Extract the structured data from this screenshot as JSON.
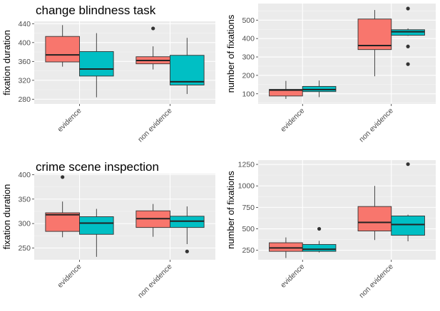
{
  "chart_data": [
    {
      "type": "boxplot",
      "title": "change blindness task",
      "xlabel": "",
      "ylabel": "fixation duration",
      "categories": [
        "evidence",
        "non evidence"
      ],
      "ylim": [
        270,
        445
      ],
      "yticks": [
        280,
        320,
        360,
        400,
        440
      ],
      "grid": true,
      "legend": "none",
      "series_colors": [
        "#F8766D",
        "#00BFC4"
      ],
      "boxes": [
        [
          {
            "min": 349,
            "q1": 359,
            "median": 374,
            "q3": 413,
            "max": 437,
            "outliers": []
          },
          {
            "min": 284,
            "q1": 329,
            "median": 344,
            "q3": 381,
            "max": 420,
            "outliers": []
          }
        ],
        [
          {
            "min": 343,
            "q1": 355,
            "median": 362,
            "q3": 370,
            "max": 392,
            "outliers": [
              430
            ]
          },
          {
            "min": 291,
            "q1": 310,
            "median": 317,
            "q3": 373,
            "max": 410,
            "outliers": []
          }
        ]
      ]
    },
    {
      "type": "boxplot",
      "title": "",
      "xlabel": "",
      "ylabel": "number of fixations",
      "categories": [
        "evidence",
        "non evidence"
      ],
      "ylim": [
        45,
        590
      ],
      "yticks": [
        100,
        200,
        300,
        400,
        500
      ],
      "grid": true,
      "legend": "none",
      "series_colors": [
        "#F8766D",
        "#00BFC4"
      ],
      "boxes": [
        [
          {
            "min": 72,
            "q1": 88,
            "median": 120,
            "q3": 124,
            "max": 170,
            "outliers": []
          },
          {
            "min": 82,
            "q1": 112,
            "median": 123,
            "q3": 140,
            "max": 172,
            "outliers": []
          }
        ],
        [
          {
            "min": 195,
            "q1": 340,
            "median": 362,
            "q3": 506,
            "max": 555,
            "outliers": []
          },
          {
            "min": 415,
            "q1": 418,
            "median": 437,
            "q3": 448,
            "max": 455,
            "outliers": [
              563,
              357,
              261
            ]
          }
        ]
      ]
    },
    {
      "type": "boxplot",
      "title": "crime scene inspection",
      "xlabel": "",
      "ylabel": "fixation duration",
      "categories": [
        "evidence",
        "non evidence"
      ],
      "ylim": [
        226,
        402
      ],
      "yticks": [
        250,
        300,
        350,
        400
      ],
      "grid": true,
      "legend": "none",
      "series_colors": [
        "#F8766D",
        "#00BFC4"
      ],
      "boxes": [
        [
          {
            "min": 272,
            "q1": 284,
            "median": 318,
            "q3": 322,
            "max": 345,
            "outliers": [
              395
            ]
          },
          {
            "min": 232,
            "q1": 278,
            "median": 301,
            "q3": 314,
            "max": 330,
            "outliers": []
          }
        ],
        [
          {
            "min": 273,
            "q1": 292,
            "median": 310,
            "q3": 326,
            "max": 340,
            "outliers": []
          },
          {
            "min": 258,
            "q1": 292,
            "median": 305,
            "q3": 315,
            "max": 335,
            "outliers": [
              243
            ]
          }
        ]
      ]
    },
    {
      "type": "boxplot",
      "title": "",
      "xlabel": "",
      "ylabel": "number of fixations",
      "categories": [
        "evidence",
        "non evidence"
      ],
      "ylim": [
        140,
        1300
      ],
      "yticks": [
        250,
        500,
        750,
        1000,
        1250
      ],
      "grid": true,
      "legend": "none",
      "series_colors": [
        "#F8766D",
        "#00BFC4"
      ],
      "boxes": [
        [
          {
            "min": 160,
            "q1": 238,
            "median": 278,
            "q3": 338,
            "max": 400,
            "outliers": []
          },
          {
            "min": 225,
            "q1": 238,
            "median": 262,
            "q3": 318,
            "max": 360,
            "outliers": [
              500
            ]
          }
        ],
        [
          {
            "min": 370,
            "q1": 475,
            "median": 575,
            "q3": 760,
            "max": 1000,
            "outliers": []
          },
          {
            "min": 355,
            "q1": 425,
            "median": 550,
            "q3": 650,
            "max": 665,
            "outliers": [
              1253
            ]
          }
        ]
      ]
    }
  ]
}
